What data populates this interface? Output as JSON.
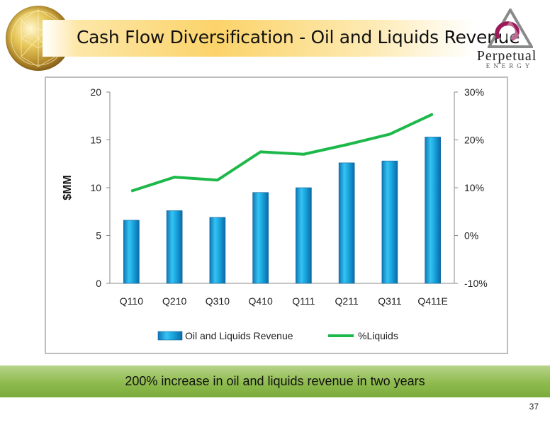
{
  "header": {
    "title": "Cash Flow Diversification - Oil and Liquids Revenue",
    "logo": {
      "name": "Perpetual",
      "sub": "ENERGY"
    }
  },
  "footer": {
    "banner_text": "200% increase in oil and liquids revenue in two years",
    "page_number": "37"
  },
  "chart_data": {
    "type": "bar",
    "categories": [
      "Q110",
      "Q210",
      "Q310",
      "Q410",
      "Q111",
      "Q211",
      "Q311",
      "Q411E"
    ],
    "ylabel": "$MM",
    "ylim": [
      0,
      20
    ],
    "yticks": [
      0,
      5,
      10,
      15,
      20
    ],
    "y2lim": [
      -10,
      30
    ],
    "y2ticks": [
      -10,
      0,
      10,
      20,
      30
    ],
    "y2tick_labels": [
      "-10%",
      "0%",
      "10%",
      "20%",
      "30%"
    ],
    "grid": false,
    "legend_position": "bottom",
    "series": [
      {
        "name": "Oil and Liquids Revenue",
        "type": "bar",
        "axis": "left",
        "color": "#1aa7e0",
        "values": [
          6.6,
          7.6,
          6.9,
          9.5,
          10.0,
          12.6,
          12.8,
          15.3
        ]
      },
      {
        "name": "%Liquids",
        "type": "line",
        "axis": "right",
        "color": "#1db84a",
        "values": [
          9.3,
          12.2,
          11.6,
          17.5,
          17.0,
          19.0,
          21.2,
          25.4
        ]
      }
    ]
  }
}
